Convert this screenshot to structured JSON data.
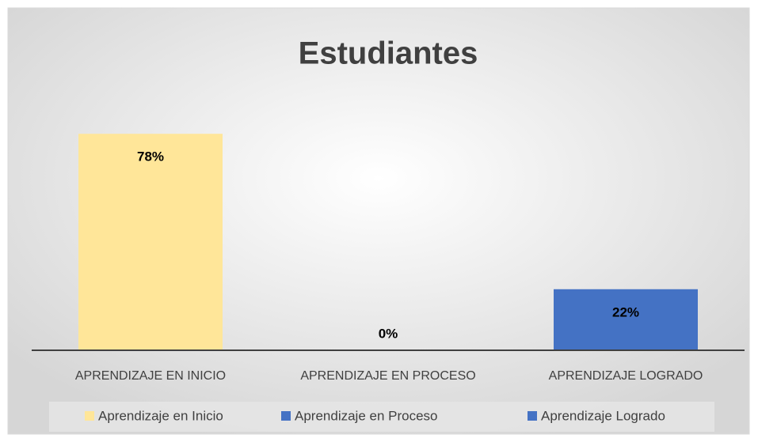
{
  "chart_data": {
    "type": "bar",
    "title": "Estudiantes",
    "categories": [
      "APRENDIZAJE EN INICIO",
      "APRENDIZAJE EN PROCESO",
      "APRENDIZAJE LOGRADO"
    ],
    "series": [
      {
        "name": "Aprendizaje en Inicio",
        "color": "#ffe699",
        "values": [
          78,
          null,
          null
        ],
        "value_labels": [
          "78%",
          null,
          null
        ]
      },
      {
        "name": "Aprendizaje en Proceso",
        "color": "#4472c4",
        "values": [
          null,
          0,
          null
        ],
        "value_labels": [
          null,
          "0%",
          null
        ]
      },
      {
        "name": "Aprendizaje Logrado",
        "color": "#4472c4",
        "values": [
          null,
          null,
          22
        ],
        "value_labels": [
          null,
          null,
          "22%"
        ]
      }
    ],
    "ylim": [
      0,
      100
    ],
    "legend": "bottom"
  }
}
